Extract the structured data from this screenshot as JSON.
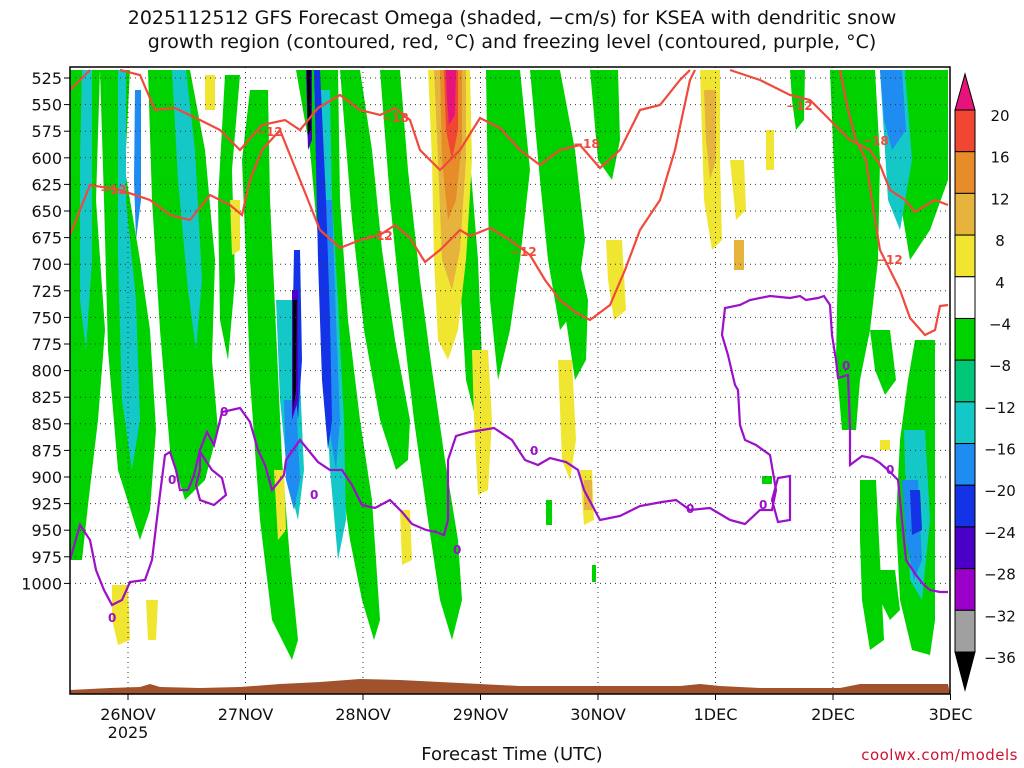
{
  "chart_data": {
    "type": "heatmap",
    "title_line1": "2025112512 GFS Forecast Omega (shaded, −cm/s) for KSEA with dendritic snow",
    "title_line2": "growth region (contoured, red, °C) and freezing level (contoured, purple, °C)",
    "xlabel": "Forecast Time (UTC)",
    "credit": "coolwx.com/models",
    "x_ticks": [
      "26NOV",
      "27NOV",
      "28NOV",
      "29NOV",
      "30NOV",
      "1DEC",
      "2DEC",
      "3DEC"
    ],
    "x_year": "2025",
    "y_ticks": [
      "525",
      "550",
      "575",
      "600",
      "625",
      "650",
      "675",
      "700",
      "725",
      "750",
      "775",
      "800",
      "825",
      "850",
      "875",
      "900",
      "925",
      "950",
      "975",
      "1000"
    ],
    "colorbar_labels": [
      "20",
      "16",
      "12",
      "8",
      "4",
      "−4",
      "−8",
      "−12",
      "−16",
      "−20",
      "−24",
      "−28",
      "−32",
      "−36"
    ],
    "contour_labels": {
      "red": [
        "−12",
        "−18"
      ],
      "purple": [
        "0"
      ]
    },
    "colors": {
      "omega_scale": [
        "#000000",
        "#a0a0a0",
        "#9b00c8",
        "#4b00c8",
        "#1432e6",
        "#1e8cf0",
        "#14c8c8",
        "#00c878",
        "#00d200",
        "#ffffff",
        "#f0e632",
        "#e6b43c",
        "#e68c28",
        "#f04632",
        "#e6147a"
      ],
      "red_contour": "#f04a3c",
      "purple_contour": "#9b10c8",
      "ground": "#a0522d"
    }
  }
}
